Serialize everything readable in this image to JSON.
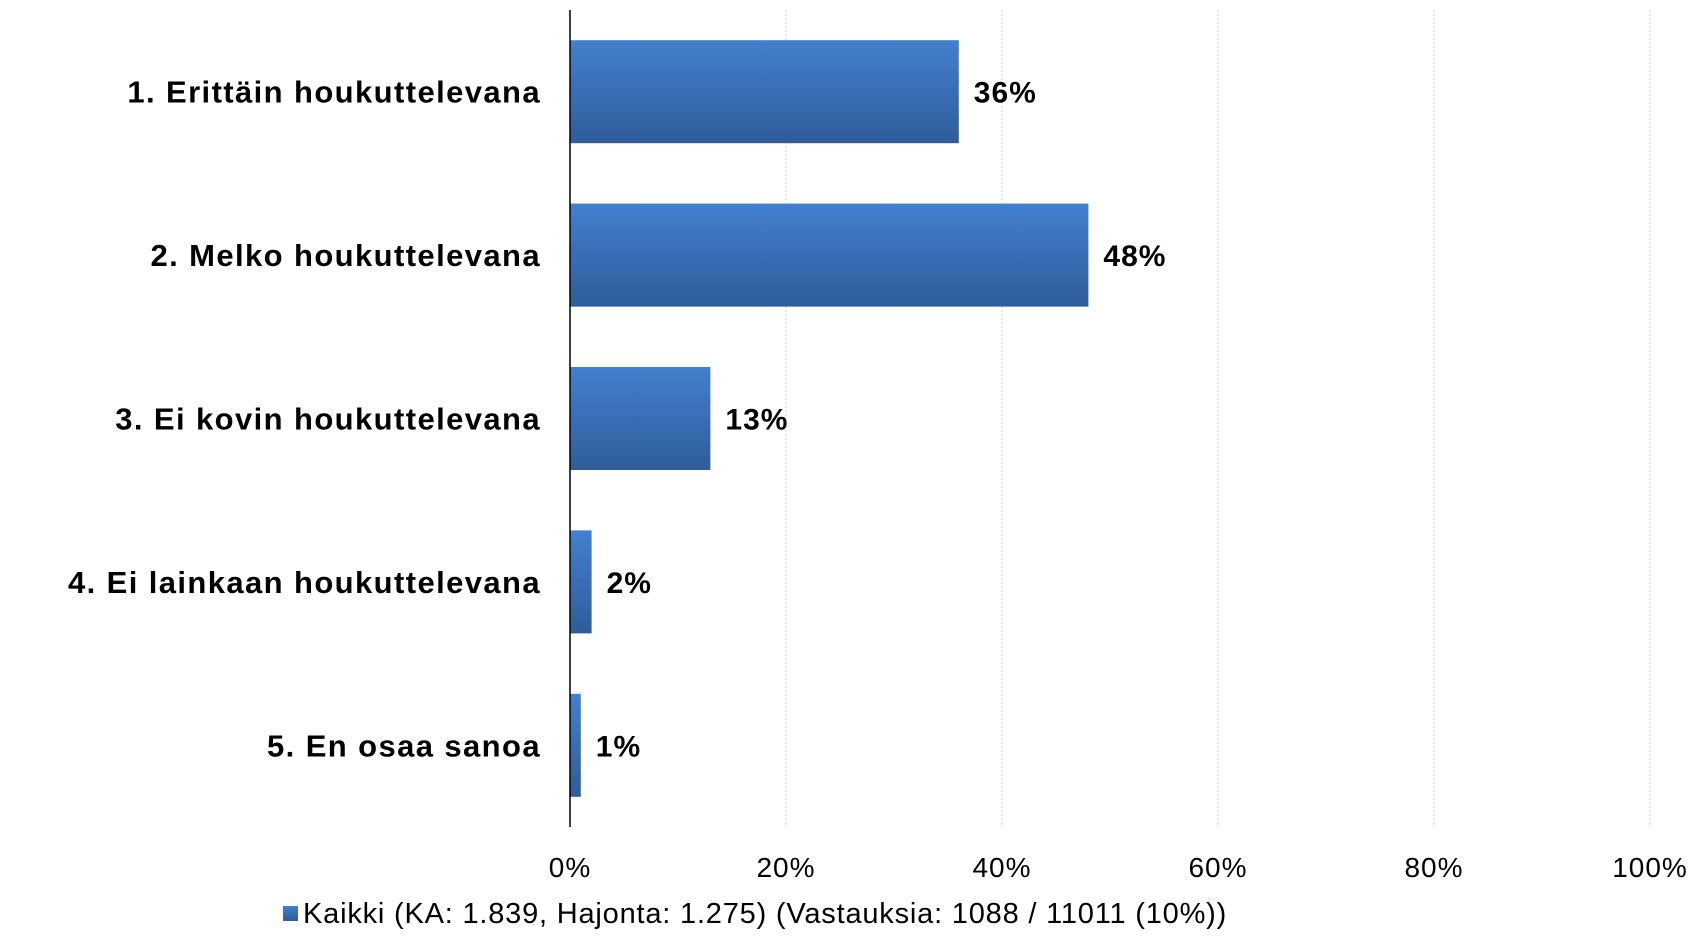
{
  "chart_data": {
    "type": "bar",
    "orientation": "horizontal",
    "categories": [
      "1. Erittäin houkuttelevana",
      "2. Melko houkuttelevana",
      "3. Ei kovin houkuttelevana",
      "4. Ei lainkaan houkuttelevana",
      "5. En osaa sanoa"
    ],
    "series": [
      {
        "name": "Kaikki (KA: 1.839, Hajonta: 1.275) (Vastauksia: 1088 / 11011 (10%))",
        "values": [
          36,
          48,
          13,
          2,
          1
        ],
        "labels": [
          "36%",
          "48%",
          "13%",
          "2%",
          "1%"
        ],
        "color": "#3a6fb5"
      }
    ],
    "xlim": [
      0,
      100
    ],
    "xticks": [
      "0%",
      "20%",
      "40%",
      "60%",
      "80%",
      "100%"
    ],
    "grid": "vertical dashed",
    "legend": "bottom"
  }
}
